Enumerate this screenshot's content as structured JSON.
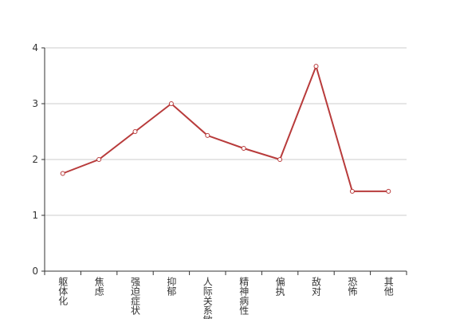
{
  "chart_data": {
    "type": "line",
    "categories": [
      "躯体化",
      "焦虑",
      "强迫症状",
      "抑郁",
      "人际关系敏感",
      "精神病性",
      "偏执",
      "敌对",
      "恐怖",
      "其他"
    ],
    "values": [
      1.75,
      2.0,
      2.5,
      3.0,
      2.43,
      2.2,
      2.0,
      3.67,
      1.43,
      1.43
    ],
    "color": "#b83b3b",
    "ylim": [
      0,
      4
    ],
    "yticks": [
      0,
      1,
      2,
      3,
      4
    ],
    "grid": true
  }
}
